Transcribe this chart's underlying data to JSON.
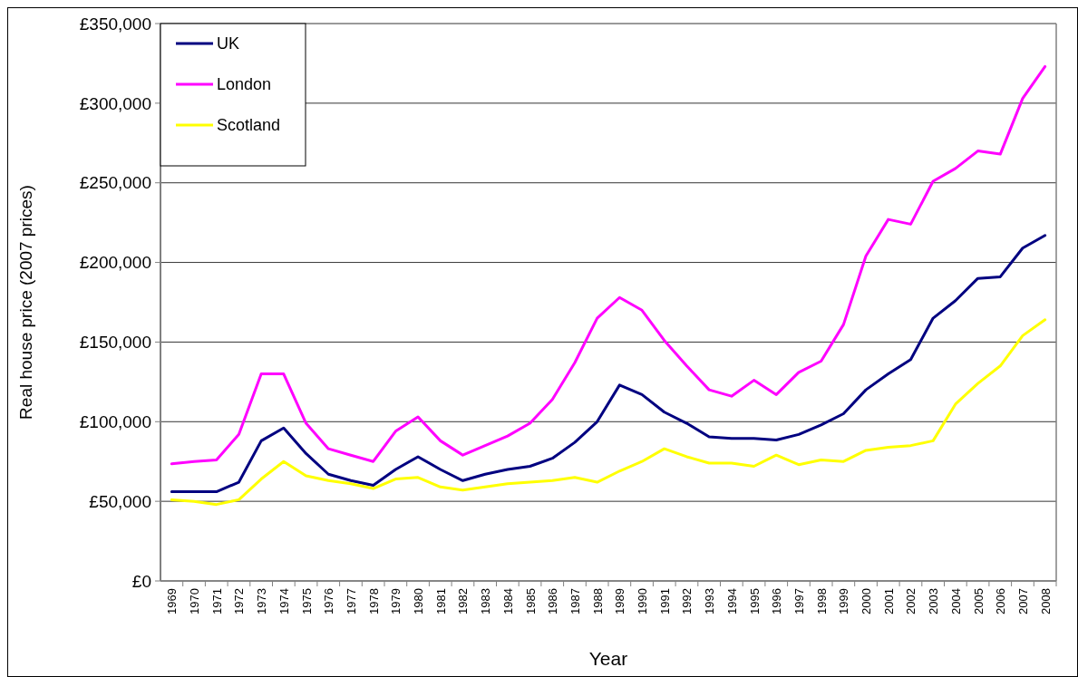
{
  "chart_data": {
    "type": "line",
    "xlabel": "Year",
    "ylabel": "Real house price (2007 prices)",
    "categories": [
      "1969",
      "1970",
      "1971",
      "1972",
      "1973",
      "1974",
      "1975",
      "1976",
      "1977",
      "1978",
      "1979",
      "1980",
      "1981",
      "1982",
      "1983",
      "1984",
      "1985",
      "1986",
      "1987",
      "1988",
      "1989",
      "1990",
      "1991",
      "1992",
      "1993",
      "1994",
      "1995",
      "1996",
      "1997",
      "1998",
      "1999",
      "2000",
      "2001",
      "2002",
      "2003",
      "2004",
      "2005",
      "2006",
      "2007",
      "2008"
    ],
    "series": [
      {
        "name": "UK",
        "color": "#000080",
        "values": [
          56000,
          56000,
          56000,
          62000,
          88000,
          96000,
          80000,
          67000,
          63000,
          60000,
          70000,
          78000,
          70000,
          63000,
          67000,
          70000,
          72000,
          77000,
          87000,
          100000,
          123000,
          117000,
          106000,
          99000,
          90500,
          89500,
          89500,
          88500,
          92000,
          98000,
          105000,
          120000,
          130000,
          139000,
          165000,
          176000,
          190000,
          191000,
          209000,
          217000
        ]
      },
      {
        "name": "London",
        "color": "#ff00ff",
        "values": [
          73500,
          75000,
          76000,
          92000,
          130000,
          130000,
          99000,
          83000,
          79000,
          75000,
          94000,
          103000,
          88000,
          79000,
          85000,
          91000,
          99000,
          114000,
          137000,
          165000,
          178000,
          170000,
          151000,
          135000,
          120000,
          116000,
          126000,
          117000,
          131000,
          138000,
          161000,
          204000,
          227000,
          224000,
          251000,
          259000,
          270000,
          268000,
          303000,
          323000
        ]
      },
      {
        "name": "Scotland",
        "color": "#ffff00",
        "values": [
          51000,
          50000,
          48000,
          51000,
          64000,
          75000,
          66000,
          63000,
          61000,
          58000,
          64000,
          65000,
          59000,
          57000,
          59000,
          61000,
          62000,
          63000,
          65000,
          62000,
          69000,
          75000,
          83000,
          78000,
          74000,
          74000,
          72000,
          79000,
          73000,
          76000,
          75000,
          82000,
          84000,
          85000,
          88000,
          111000,
          124000,
          135000,
          154000,
          164000
        ]
      }
    ],
    "ylim": [
      0,
      350000
    ],
    "yticks": [
      {
        "value": 0,
        "label": "£0"
      },
      {
        "value": 50000,
        "label": "£50,000"
      },
      {
        "value": 100000,
        "label": "£100,000"
      },
      {
        "value": 150000,
        "label": "£150,000"
      },
      {
        "value": 200000,
        "label": "£200,000"
      },
      {
        "value": 250000,
        "label": "£250,000"
      },
      {
        "value": 300000,
        "label": "£300,000"
      },
      {
        "value": 350000,
        "label": "£350,000"
      }
    ],
    "grid": "y",
    "legend": "top left",
    "marker": "none",
    "line_style": "solid"
  }
}
